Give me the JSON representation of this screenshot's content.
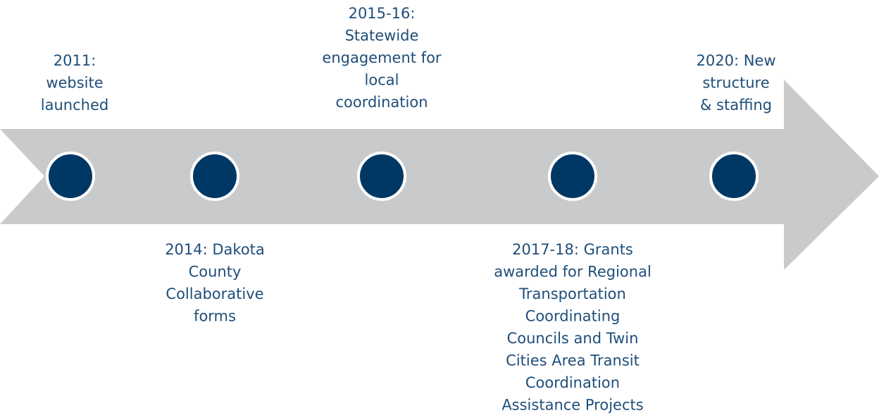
{
  "timeline": {
    "events": [
      {
        "lines": [
          "2011:",
          "website",
          "launched"
        ]
      },
      {
        "lines": [
          "2014: Dakota",
          "County",
          "Collaborative",
          "forms"
        ]
      },
      {
        "lines": [
          "2015-16:",
          "Statewide",
          "engagement for",
          "local",
          "coordination"
        ]
      },
      {
        "lines": [
          "2017-18: Grants",
          "awarded for Regional",
          "Transportation",
          "Coordinating",
          "Councils and Twin",
          "Cities Area Transit",
          "Coordination",
          "Assistance Projects"
        ]
      },
      {
        "lines": [
          "2020: New",
          "structure",
          "& staffing"
        ]
      }
    ]
  }
}
